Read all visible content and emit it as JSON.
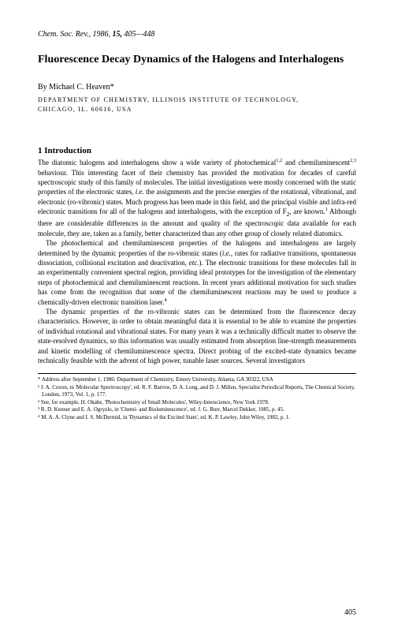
{
  "journal": {
    "name": "Chem. Soc. Rev.,",
    "year": "1986,",
    "volume": "15,",
    "pages": "405—448"
  },
  "title": "Fluorescence Decay Dynamics of the Halogens and Interhalogens",
  "author": {
    "by": "By",
    "name": "Michael C. Heaven*"
  },
  "affiliation": {
    "line1": "DEPARTMENT OF CHEMISTRY, ILLINOIS INSTITUTE OF TECHNOLOGY,",
    "line2": "CHICAGO, IL. 60616, USA"
  },
  "section": {
    "number": "1",
    "title": "Introduction"
  },
  "paragraphs": {
    "p1_part1": "The diatomic halogens and interhalogens show a wide variety of photochemical",
    "p1_sup1": "1,2",
    "p1_part2": " and chemiluminescent",
    "p1_sup2": "2,3",
    "p1_part3": " behaviour. This interesting facet of their chemistry has provided the motivation for decades of careful spectroscopic study of this family of molecules. The initial investigations were mostly concerned with the static properties of the electronic states, ",
    "p1_ie1": "i.e.",
    "p1_part4": " the assignments and the precise energies of the rotational, vibrational, and electronic (ro-vibronic) states. Much progress has been made in this field, and the principal visible and infra-red electronic transitions for all of the halogens and interhalogens, with the exception of F",
    "p1_sub1": "2",
    "p1_part5": ", are known.",
    "p1_sup3": "1",
    "p1_part6": " Although there are considerable differences in the amount and quality of the spectroscopic data available for each molecule, they are, taken as a family, better characterized than any other group of closely related diatomics.",
    "p2_part1": "The photochemical and chemiluminescent properties of the halogens and interhalogens are largely determined by the dynamic properties of the ro-vibronic states (",
    "p2_ie1": "i.e.,",
    "p2_part2": " rates for radiative transitions, spontaneous dissociation, collisional excitation and deactivation, ",
    "p2_etc": "etc.",
    "p2_part3": "). The electronic transitions for these molecules fall in an experimentally convenient spectral region, providing ideal prototypes for the investigation of the elementary steps of photochemical and chemiluminescent reactions. In recent years additional motivation for such studies has come from the recognition that some of the chemiluminescent reactions may be used to produce a chemically-driven electronic transition laser.",
    "p2_sup1": "4",
    "p3": "The dynamic properties of the ro-vibronic states can be determined from the fluorescence decay characteristics. However, in order to obtain meaningful data it is essential to be able to examine the properties of individual rotational and vibrational states. For many years it was a technically difficult matter to observe the state-resolved dynamics, so this information was usually estimated from absorption line-strength measurements and kinetic modelling of chemiluminescence spectra. Direct probing of the excited-state dynamics became technically feasible with the advent of high power, tunable laser sources. Several investigators"
  },
  "footnotes": {
    "asterisk": "* Address after September 1, 1986: Department of Chemistry, Emory University, Atlanta, GA 30322, USA",
    "f1": "¹ J. A. Coxon, in 'Molecular Spectroscopy', ed. R. F. Barrow, D. A. Long, and D. J. Millen, Specialist Periodical Reports, The Chemical Society, London, 1973, Vol. 1, p. 177.",
    "f2": "² See, for example, H. Okabe, 'Photochemistry of Small Molecules', Wiley-Interscience, New York 1978.",
    "f3": "³ R. D. Kenner and E. A. Ogryzlo, in 'Chemi- and Bioluminescence', ed. J. G. Burr, Marcel Dekker, 1985, p. 45.",
    "f4": "⁴ M. A. A. Clyne and I. S. McDermid, in 'Dynamics of the Excited State', ed. K. P. Lawley, John Wiley, 1982, p. 1."
  },
  "pageNumber": "405"
}
